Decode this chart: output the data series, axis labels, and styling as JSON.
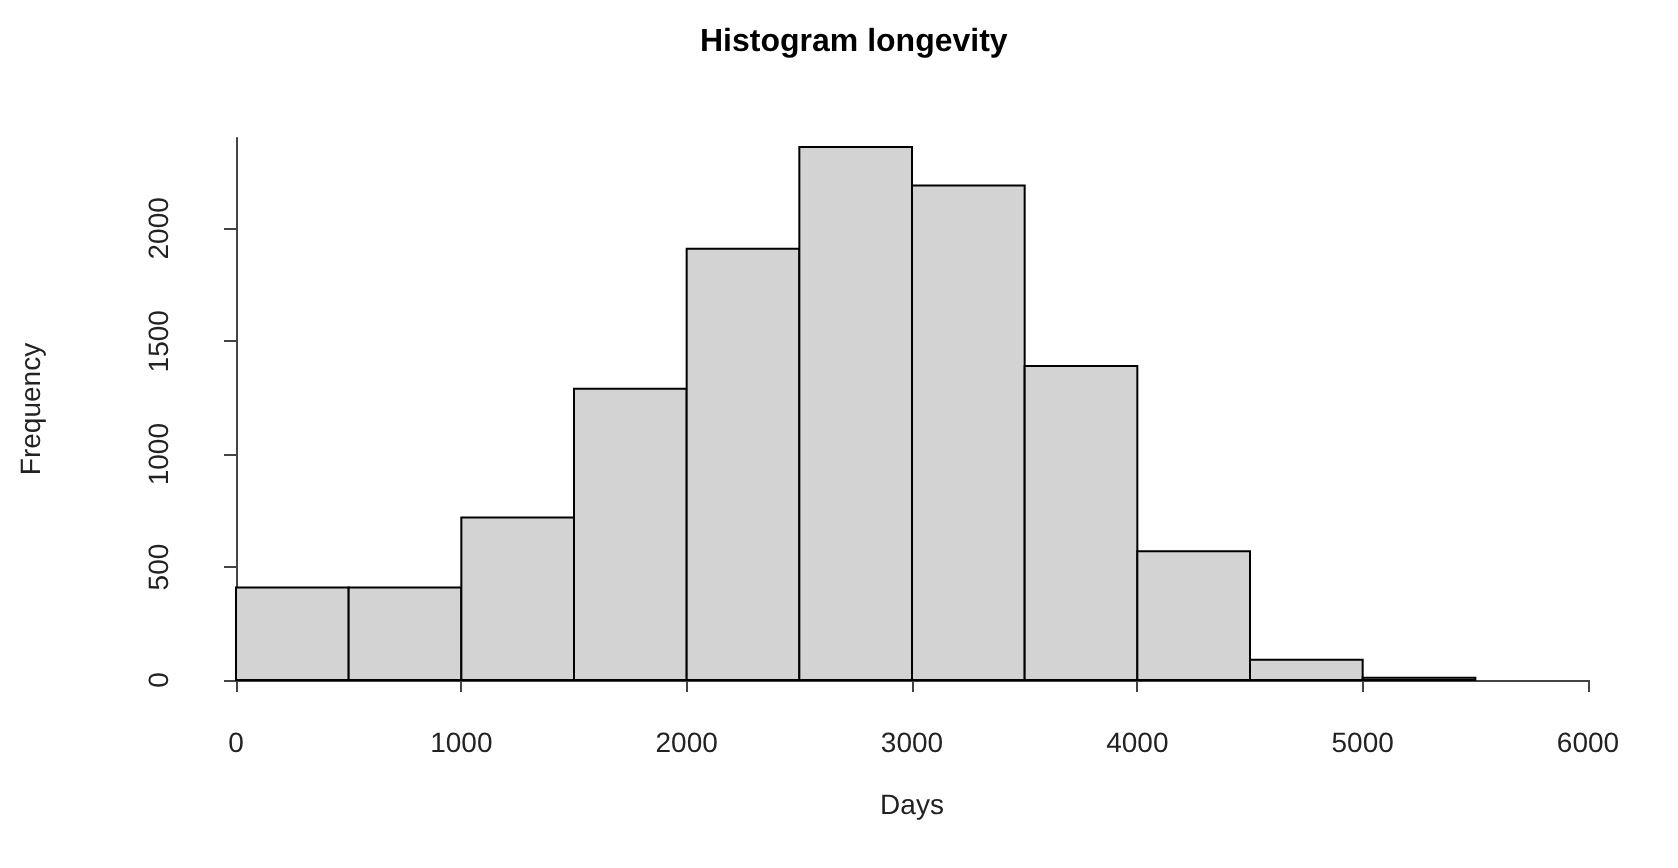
{
  "chart_data": {
    "type": "histogram",
    "title": "Histogram longevity",
    "xlabel": "Days",
    "ylabel": "Frequency",
    "bins": [
      0,
      500,
      1000,
      1500,
      2000,
      2500,
      3000,
      3500,
      4000,
      4500,
      5000,
      5500
    ],
    "values": [
      410,
      410,
      720,
      1290,
      1910,
      2360,
      2190,
      1390,
      570,
      90,
      10
    ],
    "color": "#d3d3d3",
    "xlim": [
      0,
      6000
    ],
    "xticks": [
      0,
      1000,
      2000,
      3000,
      4000,
      5000,
      6000
    ],
    "ylim": [
      0,
      2400
    ],
    "yticks": [
      0,
      500,
      1000,
      1500,
      2000
    ],
    "grid": false,
    "legend": false
  }
}
